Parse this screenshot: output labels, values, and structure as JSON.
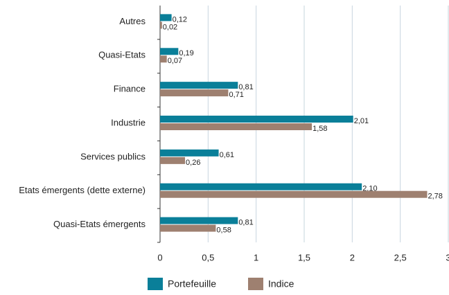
{
  "chart_data": {
    "type": "bar",
    "orientation": "horizontal",
    "categories": [
      "Autres",
      "Quasi-Etats",
      "Finance",
      "Industrie",
      "Services publics",
      "Etats émergents (dette externe)",
      "Quasi-Etats émergents"
    ],
    "series": [
      {
        "name": "Portefeuille",
        "color": "#0a7f99",
        "values": [
          0.12,
          0.19,
          0.81,
          2.01,
          0.61,
          2.1,
          0.81
        ],
        "value_labels": [
          "0,12",
          "0,19",
          "0,81",
          "2,01",
          "0,61",
          "2,10",
          "0,81"
        ]
      },
      {
        "name": "Indice",
        "color": "#9e8070",
        "values": [
          0.02,
          0.07,
          0.71,
          1.58,
          0.26,
          2.78,
          0.58
        ],
        "value_labels": [
          "0,02",
          "0,07",
          "0,71",
          "1,58",
          "0,26",
          "2,78",
          "0,58"
        ]
      }
    ],
    "xlim": [
      0,
      3
    ],
    "xticks": [
      0,
      {
        "value": 0.5,
        "label": "0,5"
      },
      1,
      {
        "value": 1.5,
        "label": "1,5"
      },
      2,
      {
        "value": 2.5,
        "label": "2,5"
      },
      3
    ],
    "grid": true,
    "legend": "bottom"
  }
}
